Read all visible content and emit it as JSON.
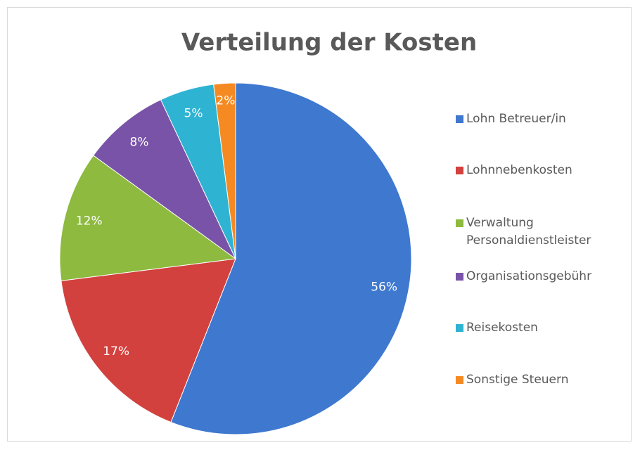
{
  "chart_data": {
    "type": "pie",
    "title": "Verteilung der Kosten",
    "categories": [
      "Lohn Betreuer/in",
      "Lohnnebenkosten",
      "Verwaltung Personaldienstleister",
      "Organisationsgebühr",
      "Reisekosten",
      "Sonstige Steuern"
    ],
    "values": [
      56,
      17,
      12,
      8,
      5,
      2
    ],
    "value_labels": [
      "56%",
      "17%",
      "12%",
      "8%",
      "5%",
      "2%"
    ],
    "colors": [
      "#3f78cf",
      "#d2413e",
      "#8dba3f",
      "#7953a8",
      "#2fb3d2",
      "#f58a22"
    ],
    "legend": "right"
  }
}
